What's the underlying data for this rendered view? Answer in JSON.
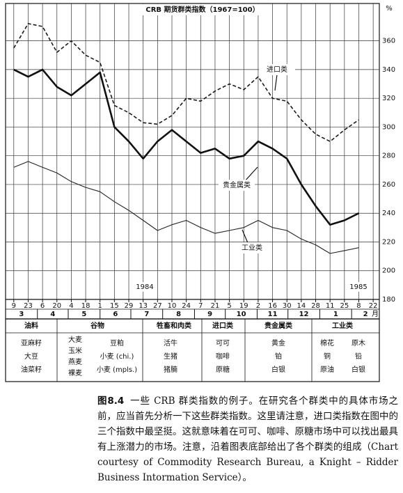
{
  "chart_data": {
    "type": "line",
    "title": "CRB 期货群类指数（1967=100）",
    "y_unit": "%",
    "x_unit": "月",
    "year_labels": [
      "1984",
      "1985"
    ],
    "x": [
      "1984-03-09",
      "1984-03-23",
      "1984-04-06",
      "1984-04-20",
      "1984-05-04",
      "1984-05-18",
      "1984-06-01",
      "1984-06-15",
      "1984-06-29",
      "1984-07-13",
      "1984-07-27",
      "1984-08-10",
      "1984-08-24",
      "1984-09-07",
      "1984-09-21",
      "1984-10-05",
      "1984-10-19",
      "1984-11-02",
      "1984-11-16",
      "1984-11-30",
      "1984-12-14",
      "1984-12-28",
      "1985-01-11",
      "1985-01-25",
      "1985-02-08",
      "1985-02-22"
    ],
    "xlim": [
      "1984-03-01",
      "1985-02-28"
    ],
    "xticks": [
      {
        "value": "1984-03-09",
        "label": "9"
      },
      {
        "value": "1984-03-23",
        "label": "23"
      },
      {
        "value": "1984-04-06",
        "label": "6"
      },
      {
        "value": "1984-04-20",
        "label": "20"
      },
      {
        "value": "1984-05-04",
        "label": "4"
      },
      {
        "value": "1984-05-18",
        "label": "18"
      },
      {
        "value": "1984-06-01",
        "label": "1"
      },
      {
        "value": "1984-06-15",
        "label": "15"
      },
      {
        "value": "1984-06-29",
        "label": "29"
      },
      {
        "value": "1984-07-13",
        "label": "13"
      },
      {
        "value": "1984-07-27",
        "label": "27"
      },
      {
        "value": "1984-08-10",
        "label": "10"
      },
      {
        "value": "1984-08-24",
        "label": "24"
      },
      {
        "value": "1984-09-07",
        "label": "7"
      },
      {
        "value": "1984-09-21",
        "label": "21"
      },
      {
        "value": "1984-10-05",
        "label": "5"
      },
      {
        "value": "1984-10-19",
        "label": "19"
      },
      {
        "value": "1984-11-02",
        "label": "2"
      },
      {
        "value": "1984-11-16",
        "label": "16"
      },
      {
        "value": "1984-11-30",
        "label": "30"
      },
      {
        "value": "1984-12-14",
        "label": "14"
      },
      {
        "value": "1984-12-28",
        "label": "28"
      },
      {
        "value": "1985-01-11",
        "label": "11"
      },
      {
        "value": "1985-01-25",
        "label": "25"
      },
      {
        "value": "1985-02-08",
        "label": "8"
      },
      {
        "value": "1985-02-22",
        "label": "22"
      }
    ],
    "x_month_ticks": [
      {
        "value": "1984-03",
        "label": "3"
      },
      {
        "value": "1984-04",
        "label": "4"
      },
      {
        "value": "1984-05",
        "label": "5"
      },
      {
        "value": "1984-06",
        "label": "6"
      },
      {
        "value": "1984-07",
        "label": "7"
      },
      {
        "value": "1984-08",
        "label": "8"
      },
      {
        "value": "1984-09",
        "label": "9"
      },
      {
        "value": "1984-10",
        "label": "10"
      },
      {
        "value": "1984-11",
        "label": "11"
      },
      {
        "value": "1984-12",
        "label": "12"
      },
      {
        "value": "1985-01",
        "label": "1"
      },
      {
        "value": "1985-02",
        "label": "2"
      }
    ],
    "ylim": [
      180,
      386
    ],
    "yticks": [
      180,
      200,
      220,
      240,
      260,
      280,
      300,
      320,
      340,
      360
    ],
    "grid": true,
    "series": [
      {
        "name": "进口类",
        "color": "#1a1a1a",
        "dash": true,
        "width": 1.6,
        "values": [
          355,
          372,
          370,
          352,
          360,
          350,
          345,
          315,
          310,
          303,
          302,
          308,
          320,
          318,
          325,
          330,
          326,
          335,
          320,
          318,
          305,
          295,
          290,
          298,
          305,
          null
        ]
      },
      {
        "name": "贵金属类",
        "color": "#111111",
        "dash": false,
        "width": 2.6,
        "values": [
          340,
          335,
          340,
          328,
          322,
          330,
          338,
          300,
          290,
          278,
          290,
          298,
          290,
          282,
          285,
          278,
          280,
          290,
          285,
          278,
          260,
          245,
          232,
          235,
          240,
          null
        ]
      },
      {
        "name": "工业类",
        "color": "#222222",
        "dash": false,
        "width": 1.1,
        "values": [
          272,
          276,
          272,
          268,
          262,
          258,
          255,
          248,
          242,
          235,
          228,
          232,
          235,
          230,
          226,
          228,
          230,
          235,
          230,
          228,
          222,
          218,
          212,
          214,
          216,
          null
        ]
      }
    ]
  },
  "table": {
    "groups": [
      {
        "name": "油料",
        "columns": [
          [
            "亚麻籽",
            "大豆",
            "油菜籽"
          ]
        ]
      },
      {
        "name": "谷物",
        "columns": [
          [
            "大麦",
            "玉米",
            "燕麦",
            "裸麦"
          ],
          [
            "豆粕",
            "小麦 (chi.)",
            "小麦 (mpls.)"
          ]
        ]
      },
      {
        "name": "牲畜和肉类",
        "columns": [
          [
            "活牛",
            "生猪",
            "猪腩"
          ]
        ]
      },
      {
        "name": "进口类",
        "columns": [
          [
            "可可",
            "咖啡",
            "原糖"
          ]
        ]
      },
      {
        "name": "贵金属类",
        "columns": [
          [
            "黄金",
            "铂",
            "白银"
          ]
        ]
      },
      {
        "name": "工业类",
        "columns": [
          [
            "棉花",
            "铜",
            "原油"
          ],
          [
            "原木",
            "铅",
            "白银"
          ]
        ]
      }
    ]
  },
  "caption": {
    "label": "图8.4",
    "text": "一些 CRB 群类指数的例子。在研究各个群类中的具体市场之前，应当首先分析一下这些群类指数。这里请注意，进口类指数在图中的三个指数中最坚挺。这就意味着在可可、咖啡、原糖市场中可以找出最具有上涨潜力的市场。注意，沿着图表底部给出了各个群类的组成（Chart courtesy of Commodity Research Bureau, a Knight – Ridder Business Intormation Service）。"
  }
}
